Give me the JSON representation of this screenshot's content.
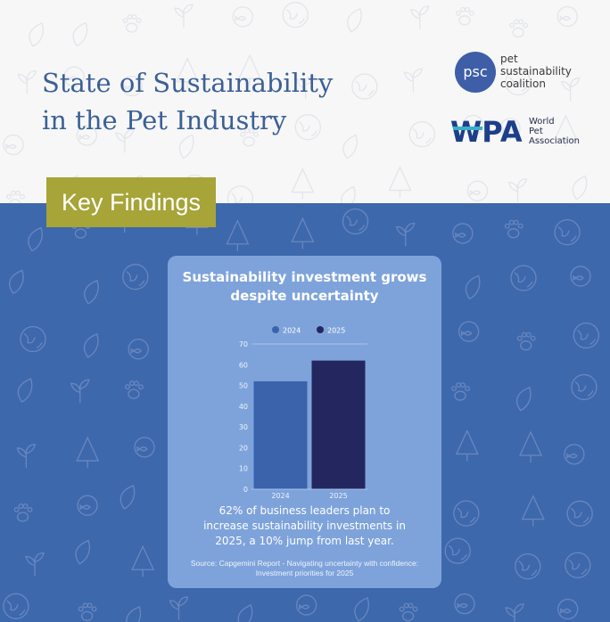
{
  "header": {
    "title_lines": [
      "State of Sustainability",
      "in the Pet Industry"
    ],
    "psc_logo": {
      "mark": "psc",
      "name_lines": [
        "pet",
        "sustainability",
        "coalition"
      ]
    },
    "wpa_logo": {
      "mark": "WPA",
      "name_lines": [
        "World",
        "Pet",
        "Association"
      ]
    }
  },
  "tag": {
    "label": "Key Findings"
  },
  "card": {
    "title_lines": [
      "Sustainability investment grows",
      "despite uncertainty"
    ],
    "summary_lines": [
      "62% of business leaders plan to",
      "increase sustainability investments in",
      "2025, a 10% jump from last year."
    ],
    "source_lines": [
      "Source: Capgemini Report - Navigating uncertainty with confidence:",
      "Investment priorities for 2025"
    ]
  },
  "colors": {
    "brand_blue": "#3e68ac",
    "title_blue": "#3c6096",
    "olive": "#a7a438",
    "card_blue": "#7ea3db",
    "bar_2024": "#3a63ac",
    "bar_2025": "#24275f"
  },
  "chart_data": {
    "type": "bar",
    "title": "Sustainability investment grows despite uncertainty",
    "categories": [
      "2024",
      "2025"
    ],
    "values": [
      52,
      62
    ],
    "bar_colors": [
      "#3a63ac",
      "#24275f"
    ],
    "legend": [
      "2024",
      "2025"
    ],
    "legend_position": "top-center",
    "xlabel": "",
    "ylabel": "",
    "ylim": [
      0,
      70
    ],
    "yticks": [
      0,
      10,
      20,
      30,
      40,
      50,
      60,
      70
    ],
    "grid": false
  }
}
